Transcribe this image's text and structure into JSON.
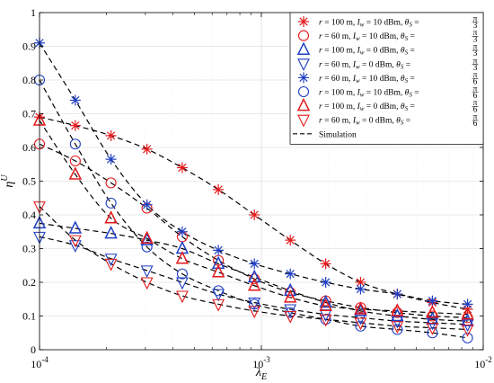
{
  "chart_data": {
    "type": "scatter",
    "xscale": "log",
    "xlim": [
      0.0001,
      0.01
    ],
    "ylim": [
      0,
      1
    ],
    "xlabel": "λ",
    "xlabel_sub": "E",
    "ylabel": "η",
    "ylabel_sup": "U",
    "x_ticks": [
      0.0001,
      0.001,
      0.01
    ],
    "x_tick_labels": [
      {
        "base": "10",
        "exp": "-4"
      },
      {
        "base": "10",
        "exp": "-3"
      },
      {
        "base": "10",
        "exp": "-2"
      }
    ],
    "y_ticks": [
      0,
      0.1,
      0.2,
      0.3,
      0.4,
      0.5,
      0.6,
      0.7,
      0.8,
      0.9,
      1
    ],
    "y_tick_labels": [
      "0",
      "0.1",
      "0.2",
      "0.3",
      "0.4",
      "0.5",
      "0.6",
      "0.7",
      "0.8",
      "0.9",
      "1"
    ],
    "grid": true,
    "legend_position": "top-right",
    "x": [
      0.0001,
      0.000145,
      0.00021,
      0.000305,
      0.00044,
      0.00064,
      0.00093,
      0.00135,
      0.00195,
      0.0028,
      0.0041,
      0.0059,
      0.0085
    ],
    "series": [
      {
        "name": "r = 100 m, I_w = 10 dBm, θ_S = π/3",
        "legend_parts": {
          "r": "100 m",
          "iw": "10 dBm",
          "num": "π",
          "den": "3"
        },
        "marker": "asterisk",
        "color": "#e41a1c",
        "values": [
          0.69,
          0.665,
          0.635,
          0.595,
          0.54,
          0.475,
          0.4,
          0.325,
          0.255,
          0.2,
          0.165,
          0.14,
          0.12
        ]
      },
      {
        "name": "r = 60 m, I_w = 10 dBm, θ_S = π/3",
        "legend_parts": {
          "r": "60 m",
          "iw": "10 dBm",
          "num": "π",
          "den": "3"
        },
        "marker": "circle",
        "color": "#e41a1c",
        "values": [
          0.61,
          0.56,
          0.495,
          0.42,
          0.335,
          0.265,
          0.21,
          0.17,
          0.145,
          0.125,
          0.11,
          0.1,
          0.095
        ]
      },
      {
        "name": "r = 100 m, I_w = 0 dBm, θ_S = π/3",
        "legend_parts": {
          "r": "100 m",
          "iw": "0 dBm",
          "num": "π",
          "den": "3"
        },
        "marker": "triangle-up",
        "color": "#1f3fc4",
        "values": [
          0.375,
          0.36,
          0.345,
          0.325,
          0.3,
          0.255,
          0.215,
          0.175,
          0.14,
          0.115,
          0.1,
          0.09,
          0.085
        ]
      },
      {
        "name": "r = 60 m, I_w = 0 dBm, θ_S = π/3",
        "legend_parts": {
          "r": "60 m",
          "iw": "0 dBm",
          "num": "π",
          "den": "3"
        },
        "marker": "triangle-down",
        "color": "#1f3fc4",
        "values": [
          0.335,
          0.31,
          0.27,
          0.235,
          0.2,
          0.165,
          0.14,
          0.12,
          0.105,
          0.095,
          0.085,
          0.08,
          0.075
        ]
      },
      {
        "name": "r = 60 m, I_w = 10 dBm, θ_S = π/6",
        "legend_parts": {
          "r": "60 m",
          "iw": "10 dBm",
          "num": "π",
          "den": "6"
        },
        "marker": "asterisk",
        "color": "#1f3fc4",
        "values": [
          0.91,
          0.74,
          0.565,
          0.43,
          0.35,
          0.295,
          0.255,
          0.225,
          0.2,
          0.18,
          0.165,
          0.145,
          0.135
        ]
      },
      {
        "name": "r = 100 m, I_w = 10 dBm, θ_S = π/6",
        "legend_parts": {
          "r": "100 m",
          "iw": "10 dBm",
          "num": "π",
          "den": "6"
        },
        "marker": "circle",
        "color": "#1f3fc4",
        "values": [
          0.8,
          0.61,
          0.435,
          0.305,
          0.225,
          0.175,
          0.135,
          0.11,
          0.09,
          0.07,
          0.06,
          0.05,
          0.035
        ]
      },
      {
        "name": "r = 100 m, I_w = 0 dBm, θ_S = π/6",
        "legend_parts": {
          "r": "100 m",
          "iw": "0 dBm",
          "num": "π",
          "den": "6"
        },
        "marker": "triangle-up",
        "color": "#e41a1c",
        "values": [
          0.68,
          0.52,
          0.39,
          0.33,
          0.27,
          0.23,
          0.19,
          0.155,
          0.13,
          0.12,
          0.115,
          0.11,
          0.105
        ]
      },
      {
        "name": "r = 60 m, I_w = 0 dBm, θ_S = π/6",
        "legend_parts": {
          "r": "60 m",
          "iw": "0 dBm",
          "num": "π",
          "den": "6"
        },
        "marker": "triangle-down",
        "color": "#e41a1c",
        "values": [
          0.425,
          0.325,
          0.255,
          0.2,
          0.16,
          0.135,
          0.115,
          0.1,
          0.09,
          0.08,
          0.07,
          0.065,
          0.06
        ]
      }
    ],
    "simulation_label": "Simulation",
    "simulation_style": "dashed"
  }
}
